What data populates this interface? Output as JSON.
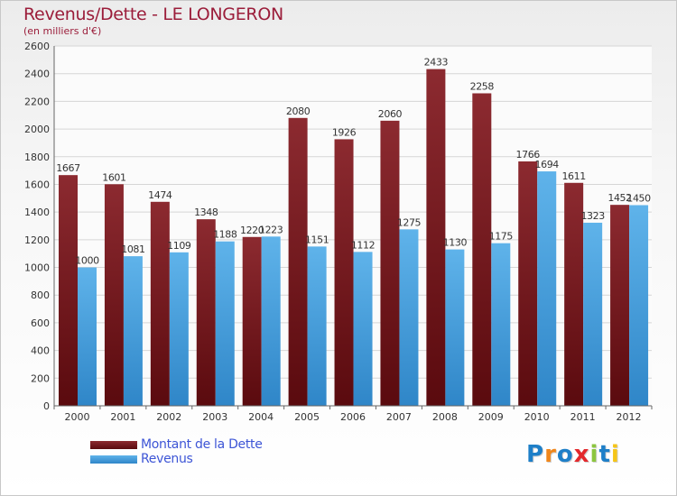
{
  "chart_data": {
    "type": "bar",
    "title": "Revenus/Dette - LE LONGERON",
    "subtitle": "(en milliers d'€)",
    "categories": [
      "2000",
      "2001",
      "2002",
      "2003",
      "2004",
      "2005",
      "2006",
      "2007",
      "2008",
      "2009",
      "2010",
      "2011",
      "2012"
    ],
    "series": [
      {
        "name": "Montant de la Dette",
        "values": [
          1667,
          1601,
          1474,
          1348,
          1220,
          2080,
          1926,
          2060,
          2433,
          2258,
          1766,
          1611,
          1452
        ],
        "color": "#7a1d22"
      },
      {
        "name": "Revenus",
        "values": [
          1000,
          1081,
          1109,
          1188,
          1223,
          1151,
          1112,
          1275,
          1130,
          1175,
          1694,
          1323,
          1450
        ],
        "color": "#4aa3e0"
      }
    ],
    "yticks": [
      0,
      200,
      400,
      600,
      800,
      1000,
      1200,
      1400,
      1600,
      1800,
      2000,
      2200,
      2400,
      2600
    ],
    "ylim": [
      0,
      2600
    ],
    "grid": true,
    "legend_position": "bottom-left"
  },
  "logo": {
    "text": "Proxiti",
    "letter_colors": [
      "#1e7fc8",
      "#f0861a",
      "#1e7fc8",
      "#e3282c",
      "#8cc63f",
      "#1e7fc8",
      "#f5c518"
    ]
  }
}
